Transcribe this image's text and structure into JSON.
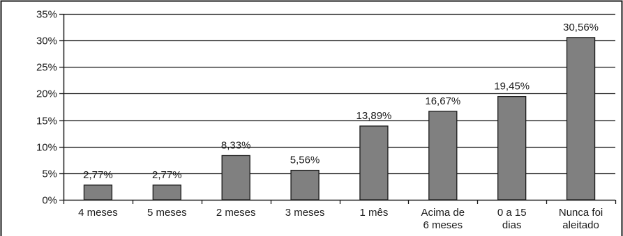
{
  "chart_data": {
    "type": "bar",
    "title": "",
    "xlabel": "",
    "ylabel": "",
    "ylim": [
      0,
      35
    ],
    "yticks": [
      "0%",
      "5%",
      "10%",
      "15%",
      "20%",
      "25%",
      "30%",
      "35%"
    ],
    "ytick_values": [
      0,
      5,
      10,
      15,
      20,
      25,
      30,
      35
    ],
    "grid": true,
    "legend": "none",
    "categories": [
      [
        "4 meses"
      ],
      [
        "5 meses"
      ],
      [
        "2 meses"
      ],
      [
        "3 meses"
      ],
      [
        "1 mês"
      ],
      [
        "Acima de",
        "6 meses"
      ],
      [
        "0 a 15",
        "dias"
      ],
      [
        "Nunca foi",
        "aleitado"
      ]
    ],
    "values": [
      2.77,
      2.77,
      8.33,
      5.56,
      13.89,
      16.67,
      19.45,
      30.56
    ],
    "value_labels": [
      "2,77%",
      "2,77%",
      "8,33%",
      "5,56%",
      "13,89%",
      "16,67%",
      "19,45%",
      "30,56%"
    ],
    "colors": {
      "bar": "#808080",
      "bar_stroke": "#1a1a1a",
      "axis": "#1a1a1a",
      "grid": "#1a1a1a",
      "frame": "#1a1a1a"
    }
  }
}
